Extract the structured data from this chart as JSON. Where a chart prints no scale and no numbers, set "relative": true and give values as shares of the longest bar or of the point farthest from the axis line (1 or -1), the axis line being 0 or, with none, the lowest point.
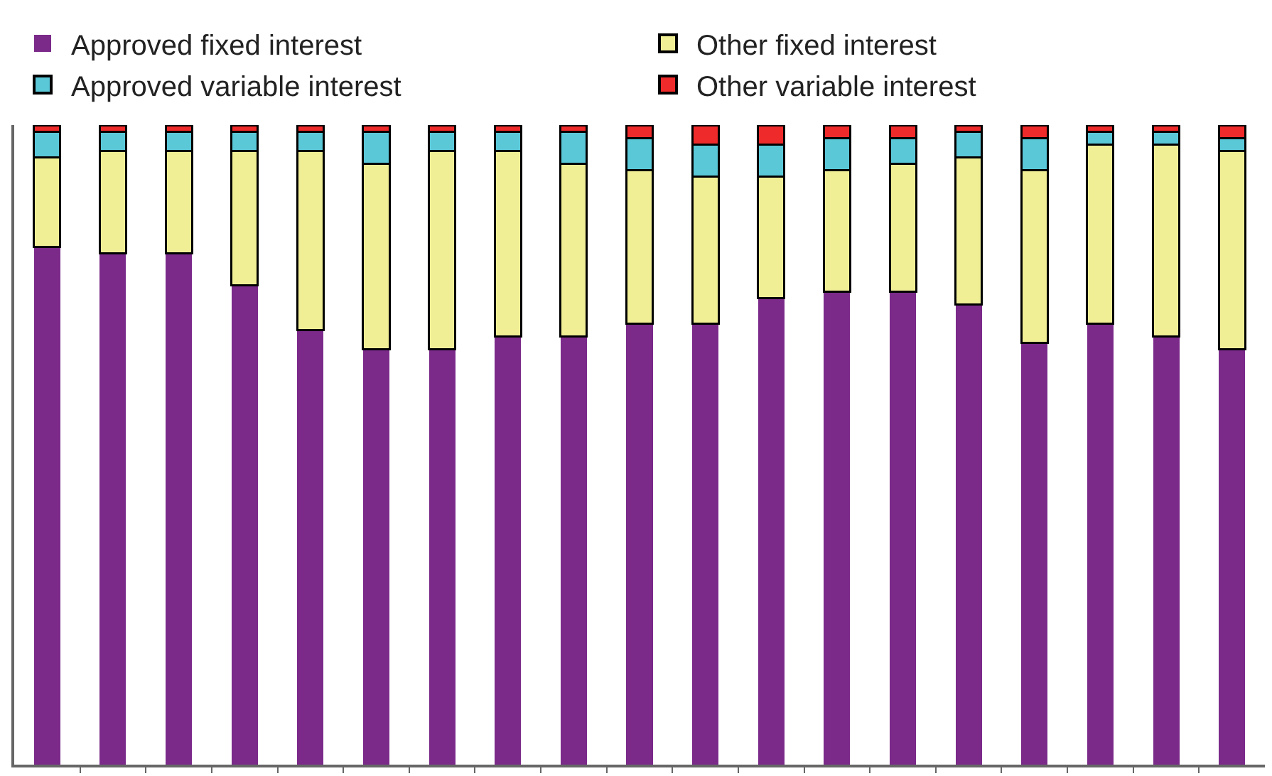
{
  "chart_data": {
    "type": "bar",
    "stacked": true,
    "relative": true,
    "legend": "top",
    "categories": [
      null,
      null,
      null,
      null,
      null,
      null,
      null,
      null,
      null,
      null,
      null,
      null,
      null,
      null,
      null,
      null,
      null,
      null,
      null
    ],
    "series": [
      {
        "name": "Approved fixed interest",
        "color": "#7b2a8a",
        "values": [
          0.81,
          0.8,
          0.8,
          0.75,
          0.68,
          0.65,
          0.65,
          0.67,
          0.67,
          0.69,
          0.69,
          0.73,
          0.74,
          0.74,
          0.72,
          0.66,
          0.69,
          0.67,
          0.65
        ]
      },
      {
        "name": "Other fixed interest",
        "color": "#f0ef96",
        "values": [
          0.14,
          0.16,
          0.16,
          0.21,
          0.28,
          0.29,
          0.31,
          0.29,
          0.27,
          0.24,
          0.23,
          0.19,
          0.19,
          0.2,
          0.23,
          0.27,
          0.28,
          0.3,
          0.31
        ]
      },
      {
        "name": "Approved variable interest",
        "color": "#5bc8d8",
        "values": [
          0.04,
          0.03,
          0.03,
          0.03,
          0.03,
          0.05,
          0.03,
          0.03,
          0.05,
          0.05,
          0.05,
          0.05,
          0.05,
          0.04,
          0.04,
          0.05,
          0.02,
          0.02,
          0.02
        ]
      },
      {
        "name": "Other variable interest",
        "color": "#ee2a2a",
        "values": [
          0.01,
          0.01,
          0.01,
          0.01,
          0.01,
          0.01,
          0.01,
          0.01,
          0.01,
          0.02,
          0.03,
          0.03,
          0.02,
          0.02,
          0.01,
          0.02,
          0.01,
          0.01,
          0.02
        ]
      }
    ]
  }
}
